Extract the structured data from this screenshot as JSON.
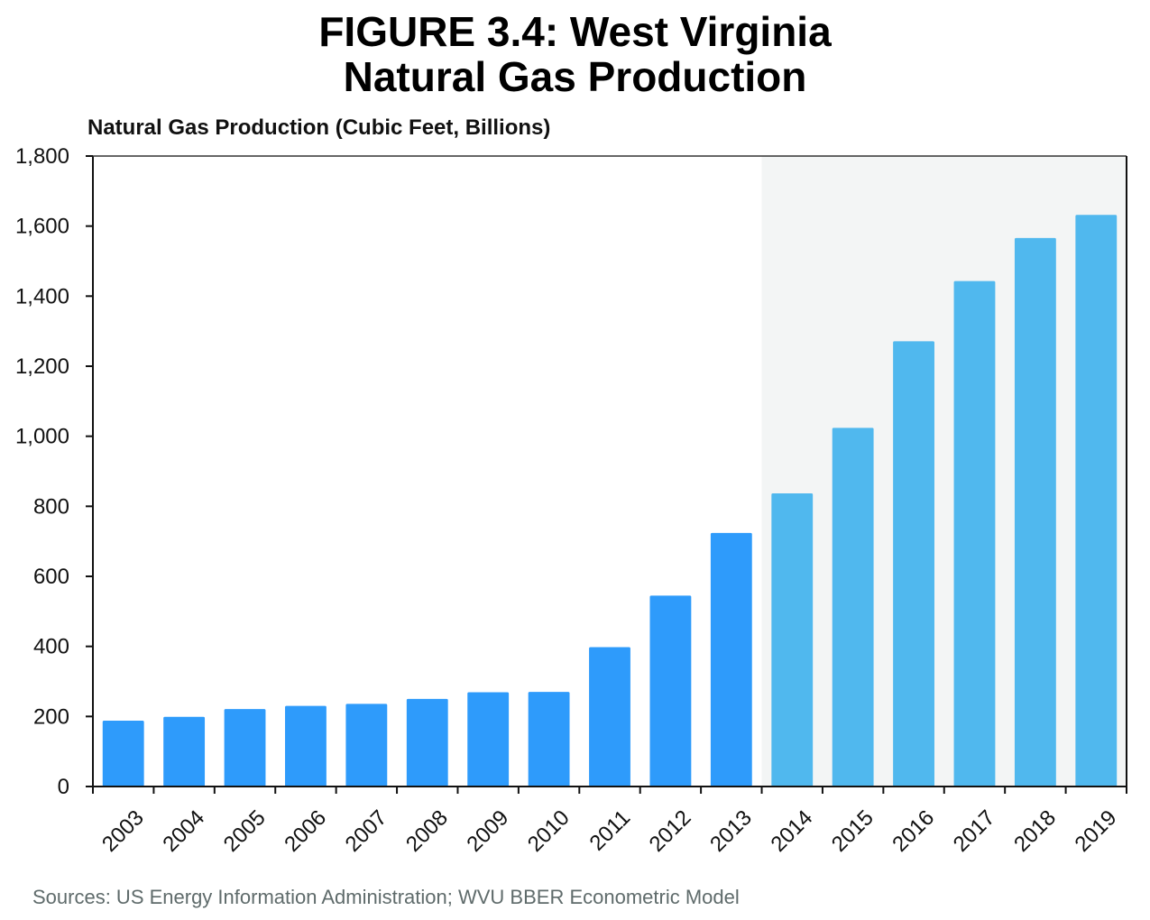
{
  "chart_data": {
    "type": "bar",
    "title": [
      "FIGURE 3.4: West Virginia",
      "Natural Gas Production"
    ],
    "ylabel": "Natural Gas Production (Cubic Feet, Billions)",
    "xlabel": "",
    "ylim": [
      0,
      1800
    ],
    "yticks": [
      0,
      200,
      400,
      600,
      800,
      1000,
      1200,
      1400,
      1600,
      1800
    ],
    "ytick_labels": [
      "0",
      "200",
      "400",
      "600",
      "800",
      "1,000",
      "1,200",
      "1,400",
      "1,600",
      "1,800"
    ],
    "categories": [
      "2003",
      "2004",
      "2005",
      "2006",
      "2007",
      "2008",
      "2009",
      "2010",
      "2011",
      "2012",
      "2013",
      "2014",
      "2015",
      "2016",
      "2017",
      "2018",
      "2019"
    ],
    "values": [
      188,
      199,
      221,
      230,
      236,
      250,
      269,
      270,
      398,
      545,
      724,
      837,
      1024,
      1271,
      1443,
      1566,
      1632
    ],
    "forecast_start_category": "2014",
    "grid": false,
    "legend": "none",
    "source": "Sources: US Energy Information Administration; WVU BBER Econometric Model"
  },
  "colors": {
    "historical_bar": "#2e9bfb",
    "forecast_bar": "#50b8ee",
    "forecast_shading": "#f3f5f5",
    "axis": "#111111",
    "source_text": "#5f6b6b"
  }
}
